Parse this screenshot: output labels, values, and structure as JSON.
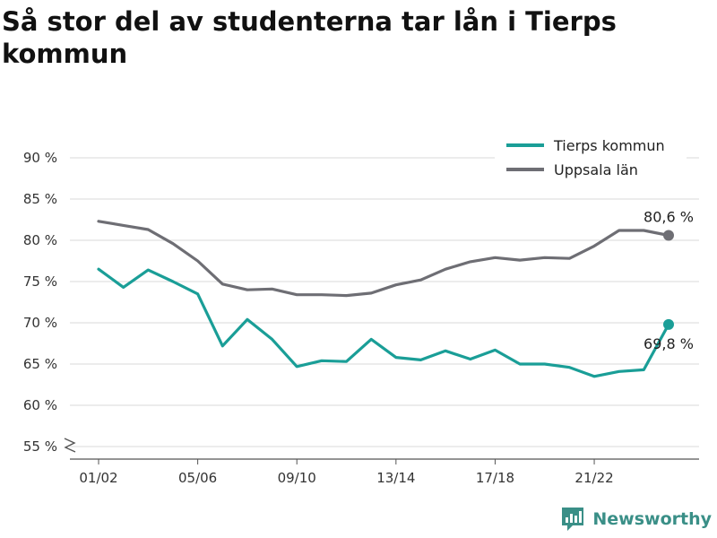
{
  "chart_data": {
    "type": "line",
    "title": "Så stor del av studenterna tar lån i Tierps kommun",
    "xlabel": "",
    "ylabel": "",
    "x_tick_labels": [
      "01/02",
      "05/06",
      "09/10",
      "13/14",
      "17/18",
      "21/22"
    ],
    "x_tick_index": [
      0,
      4,
      8,
      12,
      16,
      20
    ],
    "y_ticks": [
      55,
      60,
      65,
      70,
      75,
      80,
      85,
      90
    ],
    "y_tick_labels": [
      "55 %",
      "60 %",
      "65 %",
      "70 %",
      "75 %",
      "80 %",
      "85 %",
      "90 %"
    ],
    "ylim": [
      54,
      92
    ],
    "y_axis_break": true,
    "grid": true,
    "legend_position": "top-right",
    "series": [
      {
        "name": "Tierps kommun",
        "color": "#1a9e97",
        "end_label": "69,8 %",
        "values": [
          76.5,
          74.3,
          76.4,
          75.0,
          73.5,
          67.2,
          70.4,
          68.0,
          64.7,
          65.4,
          65.3,
          68.0,
          65.8,
          65.5,
          66.6,
          65.6,
          66.7,
          65.0,
          65.0,
          64.6,
          63.5,
          64.1,
          64.3,
          69.8
        ]
      },
      {
        "name": "Uppsala län",
        "color": "#6e6e74",
        "end_label": "80,6 %",
        "values": [
          82.3,
          81.8,
          81.3,
          79.6,
          77.5,
          74.7,
          74.0,
          74.1,
          73.4,
          73.4,
          73.3,
          73.6,
          74.6,
          75.2,
          76.5,
          77.4,
          77.9,
          77.6,
          77.9,
          77.8,
          79.3,
          81.2,
          81.2,
          80.6
        ]
      }
    ]
  },
  "brand": {
    "name": "Newsworthy",
    "icon": "newsworthy-logo-icon",
    "color": "#3a8f87"
  }
}
